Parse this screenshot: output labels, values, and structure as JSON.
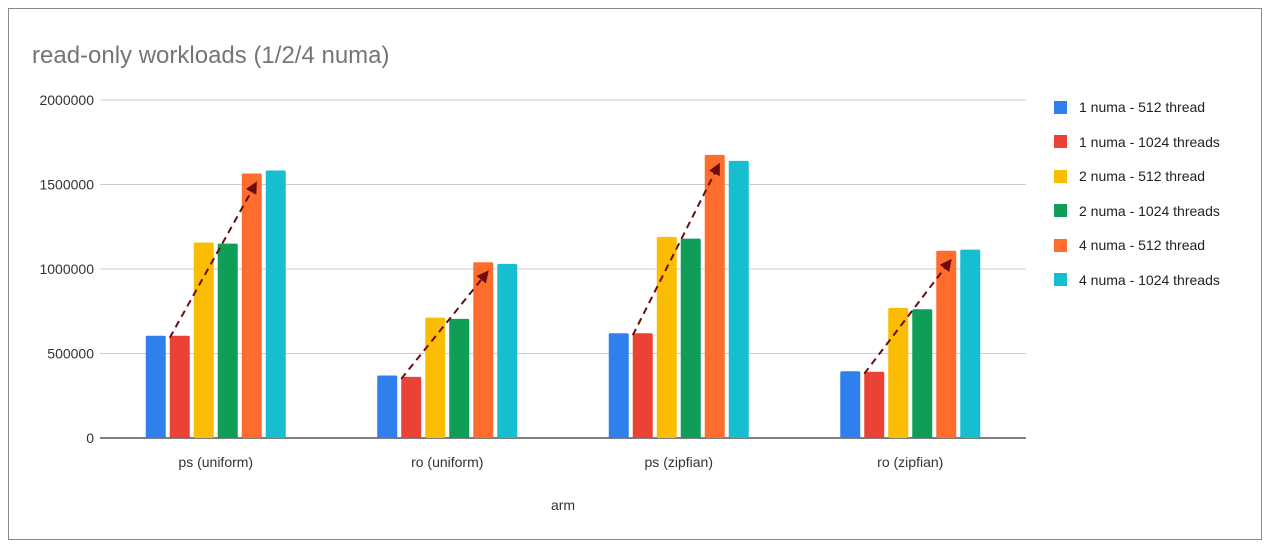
{
  "chart_data": {
    "type": "bar",
    "title": "read-only workloads (1/2/4 numa)",
    "xlabel": "arm",
    "ylabel": "",
    "ylim": [
      0,
      2000000
    ],
    "yticks": [
      "0",
      "500000",
      "1000000",
      "1500000",
      "2000000"
    ],
    "grid": true,
    "legend_position": "right",
    "categories": [
      "ps (uniform)",
      "ro (uniform)",
      "ps (zipfian)",
      "ro (zipfian)"
    ],
    "series": [
      {
        "name": "1 numa - 512 thread",
        "color": "#2f80ed",
        "values": [
          605000,
          370000,
          620000,
          395000
        ]
      },
      {
        "name": "1 numa - 1024 threads",
        "color": "#ea4335",
        "values": [
          605000,
          362000,
          620000,
          392000
        ]
      },
      {
        "name": "2 numa - 512 thread",
        "color": "#fbbc04",
        "values": [
          1157000,
          712000,
          1190000,
          770000
        ]
      },
      {
        "name": "2 numa - 1024 threads",
        "color": "#0f9d58",
        "values": [
          1150000,
          705000,
          1180000,
          762000
        ]
      },
      {
        "name": "4 numa - 512 thread",
        "color": "#ff6d2e",
        "values": [
          1565000,
          1040000,
          1675000,
          1108000
        ]
      },
      {
        "name": "4 numa - 1024 threads",
        "color": "#17becf",
        "values": [
          1583000,
          1030000,
          1640000,
          1115000
        ]
      }
    ],
    "annotations": {
      "trend_arrows": "dashed arrows from 1 numa - 1024 threads bar top to 4 numa - 512 thread bar top in each group",
      "arrow_color": "#6b0d0d"
    }
  }
}
